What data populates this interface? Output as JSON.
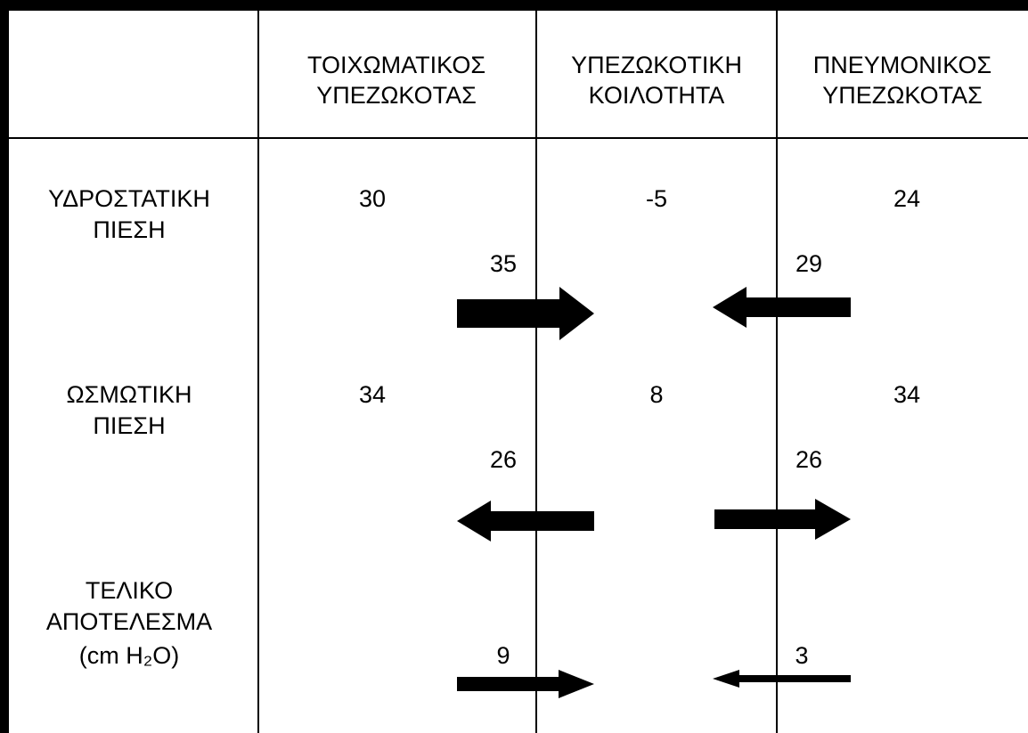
{
  "header": {
    "columns": [
      [
        "ΤΟΙΧΩΜΑΤΙΚΟΣ",
        "ΥΠΕΖΩΚΟΤΑΣ"
      ],
      [
        "ΥΠΕΖΩΚΟΤΙΚΗ",
        "ΚΟΙΛΟΤΗΤΑ"
      ],
      [
        "ΠΝΕΥΜΟΝΙΚΟΣ",
        "ΥΠΕΖΩΚΟΤΑΣ"
      ]
    ]
  },
  "rows": [
    {
      "label": [
        "ΥΔΡΟΣΤΑΤΙΚΗ",
        "ΠΙΕΣΗ"
      ],
      "values": [
        "30",
        "-5",
        "24"
      ],
      "flows": [
        "35",
        "29"
      ]
    },
    {
      "label": [
        "ΩΣΜΩΤΙΚΗ",
        "ΠΙΕΣΗ"
      ],
      "values": [
        "34",
        "8",
        "34"
      ],
      "flows": [
        "26",
        "26"
      ]
    },
    {
      "label": [
        "ΤΕΛΙΚΟ",
        "ΑΠΟΤΕΛΕΣΜΑ",
        "(cm H₂O)"
      ],
      "flows": [
        "9",
        "3"
      ]
    }
  ]
}
